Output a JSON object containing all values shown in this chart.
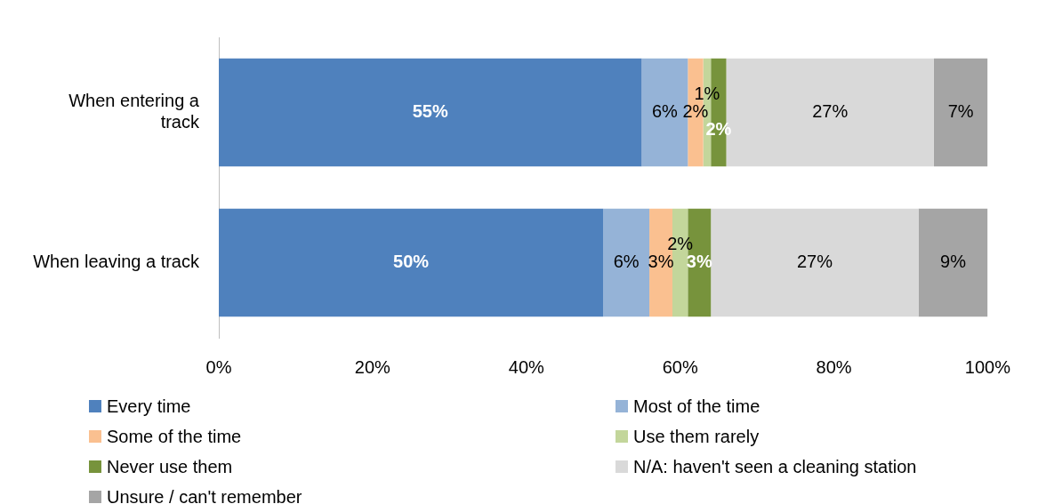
{
  "chart_data": {
    "type": "bar",
    "orientation": "horizontal",
    "stacked": true,
    "categories": [
      "When entering a track",
      "When leaving a track"
    ],
    "series": [
      {
        "name": "Every time",
        "color": "#4f81bd",
        "values": [
          55,
          50
        ],
        "value_labels": [
          "55%",
          "50%"
        ]
      },
      {
        "name": "Most of the time",
        "color": "#95b3d7",
        "values": [
          6,
          6
        ],
        "value_labels": [
          "6%",
          "6%"
        ]
      },
      {
        "name": "Some of the time",
        "color": "#fac090",
        "values": [
          2,
          3
        ],
        "value_labels": [
          "2%",
          "3%"
        ]
      },
      {
        "name": "Use them rarely",
        "color": "#c3d69b",
        "values": [
          1,
          2
        ],
        "value_labels": [
          "1%",
          "2%"
        ]
      },
      {
        "name": "Never use them",
        "color": "#77933c",
        "values": [
          2,
          3
        ],
        "value_labels": [
          "2%",
          "3%"
        ]
      },
      {
        "name": "N/A: haven't seen a cleaning station",
        "color": "#d9d9d9",
        "values": [
          27,
          27
        ],
        "value_labels": [
          "27%",
          "27%"
        ]
      },
      {
        "name": "Unsure / can't remember",
        "color": "#a5a5a5",
        "values": [
          7,
          9
        ],
        "value_labels": [
          "7%",
          "9%"
        ]
      }
    ],
    "xlim": [
      0,
      100
    ],
    "xticks": [
      {
        "value": 0,
        "label": "0%"
      },
      {
        "value": 20,
        "label": "20%"
      },
      {
        "value": 40,
        "label": "40%"
      },
      {
        "value": 60,
        "label": "60%"
      },
      {
        "value": 80,
        "label": "80%"
      },
      {
        "value": 100,
        "label": "100%"
      }
    ],
    "grid": false,
    "legend": "bottom"
  }
}
